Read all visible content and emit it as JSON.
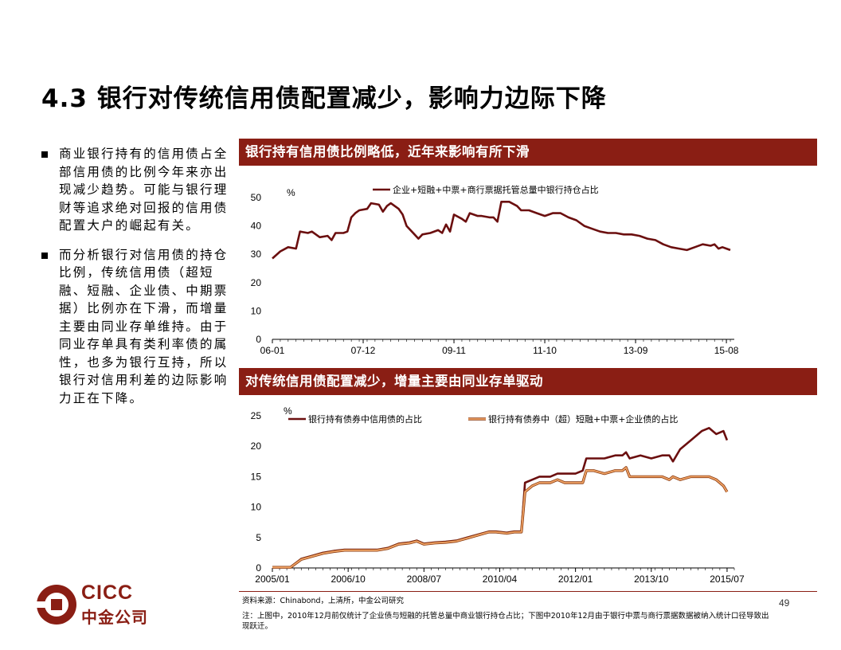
{
  "slide": {
    "title": "4.3 银行对传统信用债配置减少，影响力边际下降",
    "page_number": "49"
  },
  "bullets": [
    "商业银行持有的信用债占全部信用债的比例今年来亦出现减少趋势。可能与银行理财等追求绝对回报的信用债配置大户的崛起有关。",
    "而分析银行对信用债的持仓比例，传统信用债（超短融、短融、企业债、中期票据）比例亦在下滑，而增量主要由同业存单维持。由于同业存单具有类利率债的属性，也多为银行互持，所以银行对信用利差的边际影响力正在下降。"
  ],
  "colors": {
    "band": "#8a1e14",
    "series_dark": "#6b0f0f",
    "series_light": "#f0a466"
  },
  "source": "资料来源：Chinabond，上清所，中金公司研究",
  "note": "注：上图中，2010年12月前仅统计了企业债与短融的托管总量中商业银行持仓占比；下图中2010年12月由于银行中票与商行票据数据被纳入统计口径导致出现跃迁。",
  "logo": {
    "name": "cicc-logo",
    "text_en": "CICC",
    "text_cn": "中金公司"
  },
  "chart_data": [
    {
      "type": "line",
      "title": "银行持有信用债比例略低，近年来影响有所下滑",
      "unit": "%",
      "ylim": [
        0,
        50
      ],
      "yticks": [
        0,
        10,
        20,
        30,
        40,
        50
      ],
      "xlim": [
        "2006-01",
        "2015-10"
      ],
      "xticks": [
        "06-01",
        "07-12",
        "09-11",
        "11-10",
        "13-09",
        "15-08"
      ],
      "grid": false,
      "legend": "top",
      "series": [
        {
          "name": "企业+短融+中票+商行票据托管总量中银行持仓占比",
          "points": [
            [
              "2006-01",
              28.5
            ],
            [
              "2006-03",
              31
            ],
            [
              "2006-05",
              32.5
            ],
            [
              "2006-07",
              32
            ],
            [
              "2006-08",
              38
            ],
            [
              "2006-10",
              37.5
            ],
            [
              "2006-11",
              38
            ],
            [
              "2007-01",
              36
            ],
            [
              "2007-03",
              36.5
            ],
            [
              "2007-04",
              35
            ],
            [
              "2007-05",
              37.5
            ],
            [
              "2007-07",
              37.5
            ],
            [
              "2007-08",
              38
            ],
            [
              "2007-09",
              43
            ],
            [
              "2007-10",
              44.5
            ],
            [
              "2007-11",
              45.5
            ],
            [
              "2008-01",
              46
            ],
            [
              "2008-02",
              48
            ],
            [
              "2008-04",
              47.5
            ],
            [
              "2008-05",
              45
            ],
            [
              "2008-06",
              47
            ],
            [
              "2008-07",
              48
            ],
            [
              "2008-09",
              46
            ],
            [
              "2008-10",
              44
            ],
            [
              "2008-11",
              40
            ],
            [
              "2009-01",
              37
            ],
            [
              "2009-02",
              35.5
            ],
            [
              "2009-03",
              37
            ],
            [
              "2009-05",
              37.5
            ],
            [
              "2009-07",
              38.5
            ],
            [
              "2009-08",
              37.5
            ],
            [
              "2009-09",
              40.5
            ],
            [
              "2009-10",
              38
            ],
            [
              "2009-11",
              44
            ],
            [
              "2010-01",
              42.5
            ],
            [
              "2010-02",
              41.5
            ],
            [
              "2010-03",
              44.5
            ],
            [
              "2010-05",
              43.5
            ],
            [
              "2010-06",
              43.5
            ],
            [
              "2010-08",
              43
            ],
            [
              "2010-09",
              43
            ],
            [
              "2010-10",
              41.5
            ],
            [
              "2010-11",
              48.5
            ],
            [
              "2011-01",
              48.5
            ],
            [
              "2011-03",
              47
            ],
            [
              "2011-04",
              45.5
            ],
            [
              "2011-06",
              45.5
            ],
            [
              "2011-08",
              44.5
            ],
            [
              "2011-10",
              43.5
            ],
            [
              "2011-12",
              44.5
            ],
            [
              "2012-02",
              44.5
            ],
            [
              "2012-04",
              43
            ],
            [
              "2012-06",
              42
            ],
            [
              "2012-08",
              40
            ],
            [
              "2012-10",
              39
            ],
            [
              "2012-12",
              38
            ],
            [
              "2013-02",
              37.5
            ],
            [
              "2013-04",
              37.5
            ],
            [
              "2013-06",
              37
            ],
            [
              "2013-08",
              37
            ],
            [
              "2013-10",
              36.5
            ],
            [
              "2013-12",
              35.5
            ],
            [
              "2014-02",
              35
            ],
            [
              "2014-04",
              33.5
            ],
            [
              "2014-06",
              32.5
            ],
            [
              "2014-08",
              32
            ],
            [
              "2014-10",
              31.5
            ],
            [
              "2014-12",
              32.5
            ],
            [
              "2015-02",
              33.5
            ],
            [
              "2015-04",
              33
            ],
            [
              "2015-05",
              33.5
            ],
            [
              "2015-06",
              32
            ],
            [
              "2015-07",
              32.5
            ],
            [
              "2015-08",
              32
            ],
            [
              "2015-09",
              31.5
            ]
          ]
        }
      ]
    },
    {
      "type": "line",
      "title": "对传统信用债配置减少，增量主要由同业存单驱动",
      "unit": "%",
      "ylim": [
        0,
        25
      ],
      "yticks": [
        0,
        5,
        10,
        15,
        20,
        25
      ],
      "xlim": [
        "2005-01",
        "2015-09"
      ],
      "xticks": [
        "2005/01",
        "2006/10",
        "2008/07",
        "2010/04",
        "2012/01",
        "2013/10",
        "2015/07"
      ],
      "grid": false,
      "legend": "top",
      "series": [
        {
          "name": "银行持有债券中信用债的占比",
          "color_key": "series_dark",
          "points": [
            [
              "2005-01",
              0.1
            ],
            [
              "2005-06",
              0.1
            ],
            [
              "2005-09",
              1.5
            ],
            [
              "2005-12",
              2
            ],
            [
              "2006-03",
              2.5
            ],
            [
              "2006-06",
              2.8
            ],
            [
              "2006-09",
              3
            ],
            [
              "2006-12",
              3
            ],
            [
              "2007-03",
              3
            ],
            [
              "2007-06",
              3
            ],
            [
              "2007-09",
              3.3
            ],
            [
              "2007-12",
              4
            ],
            [
              "2008-03",
              4.2
            ],
            [
              "2008-05",
              4.5
            ],
            [
              "2008-07",
              4
            ],
            [
              "2008-10",
              4.2
            ],
            [
              "2009-01",
              4.3
            ],
            [
              "2009-04",
              4.5
            ],
            [
              "2009-07",
              5
            ],
            [
              "2009-10",
              5.5
            ],
            [
              "2010-01",
              6
            ],
            [
              "2010-03",
              6
            ],
            [
              "2010-06",
              5.8
            ],
            [
              "2010-08",
              6
            ],
            [
              "2010-10",
              6
            ],
            [
              "2010-11",
              14
            ],
            [
              "2011-01",
              14.5
            ],
            [
              "2011-03",
              15
            ],
            [
              "2011-06",
              15
            ],
            [
              "2011-08",
              15.5
            ],
            [
              "2011-10",
              15.5
            ],
            [
              "2012-01",
              15.5
            ],
            [
              "2012-03",
              16
            ],
            [
              "2012-04",
              18
            ],
            [
              "2012-06",
              18
            ],
            [
              "2012-09",
              18
            ],
            [
              "2012-12",
              18.5
            ],
            [
              "2013-02",
              18.5
            ],
            [
              "2013-03",
              19
            ],
            [
              "2013-04",
              18
            ],
            [
              "2013-07",
              18.5
            ],
            [
              "2013-10",
              18
            ],
            [
              "2014-01",
              18.5
            ],
            [
              "2014-03",
              18.5
            ],
            [
              "2014-04",
              17.5
            ],
            [
              "2014-06",
              19.5
            ],
            [
              "2014-09",
              21
            ],
            [
              "2014-12",
              22.5
            ],
            [
              "2015-02",
              23
            ],
            [
              "2015-04",
              22
            ],
            [
              "2015-06",
              22.5
            ],
            [
              "2015-07",
              21
            ]
          ]
        },
        {
          "name": "银行持有债券中（超）短融+中票+企业债的占比",
          "color_key": "series_light",
          "points": [
            [
              "2005-01",
              0.1
            ],
            [
              "2005-06",
              0.1
            ],
            [
              "2005-09",
              1.4
            ],
            [
              "2005-12",
              1.9
            ],
            [
              "2006-03",
              2.4
            ],
            [
              "2006-06",
              2.7
            ],
            [
              "2006-09",
              2.9
            ],
            [
              "2006-12",
              2.9
            ],
            [
              "2007-03",
              2.9
            ],
            [
              "2007-06",
              2.9
            ],
            [
              "2007-09",
              3.2
            ],
            [
              "2007-12",
              3.9
            ],
            [
              "2008-03",
              4.1
            ],
            [
              "2008-05",
              4.4
            ],
            [
              "2008-07",
              3.9
            ],
            [
              "2008-10",
              4.1
            ],
            [
              "2009-01",
              4.2
            ],
            [
              "2009-04",
              4.4
            ],
            [
              "2009-07",
              4.9
            ],
            [
              "2009-10",
              5.4
            ],
            [
              "2010-01",
              5.9
            ],
            [
              "2010-03",
              5.9
            ],
            [
              "2010-06",
              5.7
            ],
            [
              "2010-08",
              5.9
            ],
            [
              "2010-10",
              5.9
            ],
            [
              "2010-11",
              12.5
            ],
            [
              "2011-01",
              13.5
            ],
            [
              "2011-03",
              14
            ],
            [
              "2011-06",
              14
            ],
            [
              "2011-08",
              14.5
            ],
            [
              "2011-10",
              14
            ],
            [
              "2012-01",
              14
            ],
            [
              "2012-03",
              14
            ],
            [
              "2012-04",
              16
            ],
            [
              "2012-06",
              16
            ],
            [
              "2012-09",
              15.5
            ],
            [
              "2012-12",
              16
            ],
            [
              "2013-02",
              16
            ],
            [
              "2013-03",
              16.5
            ],
            [
              "2013-04",
              15
            ],
            [
              "2013-07",
              15
            ],
            [
              "2013-10",
              15
            ],
            [
              "2014-01",
              15
            ],
            [
              "2014-03",
              14.5
            ],
            [
              "2014-04",
              15
            ],
            [
              "2014-06",
              14.5
            ],
            [
              "2014-09",
              15
            ],
            [
              "2014-12",
              15
            ],
            [
              "2015-02",
              15
            ],
            [
              "2015-04",
              14.5
            ],
            [
              "2015-06",
              13.5
            ],
            [
              "2015-07",
              12.5
            ]
          ]
        }
      ]
    }
  ]
}
